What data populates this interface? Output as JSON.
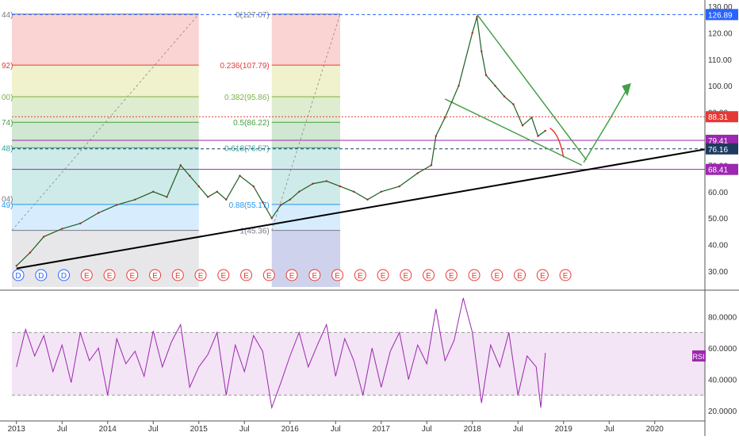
{
  "chart_data": {
    "type": "line",
    "x_axis": {
      "tick_labels": [
        "2013",
        "Jul",
        "2014",
        "Jul",
        "2015",
        "Jul",
        "2016",
        "Jul",
        "2017",
        "Jul",
        "2018",
        "Jul",
        "2019",
        "Jul",
        "2020"
      ],
      "tick_times": [
        2013.0,
        2013.5,
        2014.0,
        2014.5,
        2015.0,
        2015.5,
        2016.0,
        2016.5,
        2017.0,
        2017.5,
        2018.0,
        2018.5,
        2019.0,
        2019.5,
        2020.0
      ],
      "range": [
        2012.95,
        2020.55
      ]
    },
    "price_pane": {
      "y_range": [
        24,
        130
      ],
      "y_ticks": [
        "130.00",
        "120.00",
        "110.00",
        "100.00",
        "90.00",
        "80.00",
        "70.00",
        "60.00",
        "50.00",
        "40.00",
        "30.00"
      ],
      "y_tick_values": [
        130,
        120,
        110,
        100,
        90,
        80,
        70,
        60,
        50,
        40,
        30
      ],
      "price_series": {
        "x": [
          2013.0,
          2013.15,
          2013.3,
          2013.5,
          2013.7,
          2013.9,
          2014.1,
          2014.3,
          2014.5,
          2014.65,
          2014.8,
          2014.9,
          2015.0,
          2015.1,
          2015.2,
          2015.3,
          2015.45,
          2015.6,
          2015.7,
          2015.8,
          2015.9,
          2016.0,
          2016.1,
          2016.25,
          2016.4,
          2016.55,
          2016.7,
          2016.85,
          2017.0,
          2017.2,
          2017.4,
          2017.55,
          2017.6,
          2017.7,
          2017.85,
          2018.0,
          2018.05,
          2018.1,
          2018.15,
          2018.25,
          2018.35,
          2018.45,
          2018.55,
          2018.65,
          2018.72,
          2018.8
        ],
        "y": [
          32,
          37,
          43,
          46,
          48,
          52,
          55,
          57,
          60,
          58,
          70,
          66,
          62,
          58,
          60,
          57,
          66,
          62,
          56,
          50,
          55,
          57,
          60,
          63,
          64,
          62,
          60,
          57,
          60,
          62,
          67,
          70,
          81,
          88,
          100,
          120,
          126,
          113,
          104,
          100,
          96,
          93,
          85,
          88,
          81,
          83
        ]
      },
      "fib_levels": [
        {
          "label": "0(127.07)",
          "value": 127.07,
          "color": "#787b86"
        },
        {
          "label": "0.236(107.79)",
          "value": 107.79,
          "color": "#e53935"
        },
        {
          "label": "0.382(95.86)",
          "value": 95.86,
          "color": "#7cb342"
        },
        {
          "label": "0.5(86.22)",
          "value": 86.22,
          "color": "#43a047"
        },
        {
          "label": "0.618(76.57)",
          "value": 76.57,
          "color": "#26a69a"
        },
        {
          "label": "0.88(55.17)",
          "value": 55.17,
          "color": "#2196f3"
        },
        {
          "label": "1(45.36)",
          "value": 45.36,
          "color": "#787b86"
        }
      ],
      "left_fib_labels": [
        "44)",
        "92)",
        "00)",
        "74)",
        "48)",
        "49)",
        "04)"
      ],
      "price_labels": [
        {
          "text": "126.89",
          "value": 126.89,
          "color": "#2962ff"
        },
        {
          "text": "88.31",
          "value": 88.31,
          "color": "#e53935"
        },
        {
          "text": "79.41",
          "value": 79.41,
          "color": "#9c27b0"
        },
        {
          "text": "76.16",
          "value": 76.16,
          "color": "#1e3a5f"
        },
        {
          "text": "68.41",
          "value": 68.41,
          "color": "#9c27b0"
        }
      ],
      "event_markers": [
        {
          "t": 2013.02,
          "text": "D",
          "color": "#2962ff"
        },
        {
          "t": 2013.27,
          "text": "D",
          "color": "#2962ff"
        },
        {
          "t": 2013.52,
          "text": "D",
          "color": "#2962ff"
        },
        {
          "t": 2013.77,
          "text": "E",
          "color": "#e53935"
        },
        {
          "t": 2014.02,
          "text": "E",
          "color": "#e53935"
        },
        {
          "t": 2014.27,
          "text": "E",
          "color": "#e53935"
        },
        {
          "t": 2014.52,
          "text": "E",
          "color": "#e53935"
        },
        {
          "t": 2014.77,
          "text": "E",
          "color": "#e53935"
        },
        {
          "t": 2015.02,
          "text": "E",
          "color": "#e53935"
        },
        {
          "t": 2015.27,
          "text": "E",
          "color": "#e53935"
        },
        {
          "t": 2015.52,
          "text": "E",
          "color": "#e53935"
        },
        {
          "t": 2015.77,
          "text": "E",
          "color": "#e53935"
        },
        {
          "t": 2016.02,
          "text": "E",
          "color": "#e53935"
        },
        {
          "t": 2016.27,
          "text": "E",
          "color": "#e53935"
        },
        {
          "t": 2016.52,
          "text": "E",
          "color": "#e53935"
        },
        {
          "t": 2016.77,
          "text": "E",
          "color": "#e53935"
        },
        {
          "t": 2017.02,
          "text": "E",
          "color": "#e53935"
        },
        {
          "t": 2017.27,
          "text": "E",
          "color": "#e53935"
        },
        {
          "t": 2017.52,
          "text": "E",
          "color": "#e53935"
        },
        {
          "t": 2017.77,
          "text": "E",
          "color": "#e53935"
        },
        {
          "t": 2018.02,
          "text": "E",
          "color": "#e53935"
        },
        {
          "t": 2018.27,
          "text": "E",
          "color": "#e53935"
        },
        {
          "t": 2018.52,
          "text": "E",
          "color": "#e53935"
        },
        {
          "t": 2018.77,
          "text": "E",
          "color": "#e53935"
        },
        {
          "t": 2019.02,
          "text": "E",
          "color": "#e53935"
        }
      ]
    },
    "rsi_pane": {
      "label": "RSI",
      "y_range": [
        15,
        95
      ],
      "y_ticks": [
        "80.0000",
        "60.0000",
        "40.0000",
        "20.0000"
      ],
      "y_tick_values": [
        80,
        60,
        40,
        20
      ],
      "band": [
        30,
        70
      ],
      "series": {
        "x": [
          2013.0,
          2013.1,
          2013.2,
          2013.3,
          2013.4,
          2013.5,
          2013.6,
          2013.7,
          2013.8,
          2013.9,
          2014.0,
          2014.1,
          2014.2,
          2014.3,
          2014.4,
          2014.5,
          2014.6,
          2014.7,
          2014.8,
          2014.9,
          2015.0,
          2015.1,
          2015.2,
          2015.3,
          2015.4,
          2015.5,
          2015.6,
          2015.7,
          2015.8,
          2015.9,
          2016.0,
          2016.1,
          2016.2,
          2016.3,
          2016.4,
          2016.5,
          2016.6,
          2016.7,
          2016.8,
          2016.9,
          2017.0,
          2017.1,
          2017.2,
          2017.3,
          2017.4,
          2017.5,
          2017.6,
          2017.7,
          2017.8,
          2017.9,
          2018.0,
          2018.1,
          2018.2,
          2018.3,
          2018.4,
          2018.5,
          2018.6,
          2018.7,
          2018.75,
          2018.8
        ],
        "y": [
          48,
          72,
          55,
          68,
          45,
          62,
          38,
          70,
          52,
          60,
          30,
          66,
          50,
          58,
          42,
          71,
          48,
          64,
          75,
          35,
          48,
          56,
          70,
          30,
          62,
          45,
          68,
          58,
          22,
          38,
          55,
          70,
          48,
          62,
          75,
          42,
          66,
          52,
          30,
          60,
          35,
          58,
          70,
          40,
          62,
          50,
          85,
          52,
          65,
          92,
          70,
          25,
          62,
          48,
          70,
          30,
          55,
          48,
          22,
          57
        ]
      }
    }
  }
}
